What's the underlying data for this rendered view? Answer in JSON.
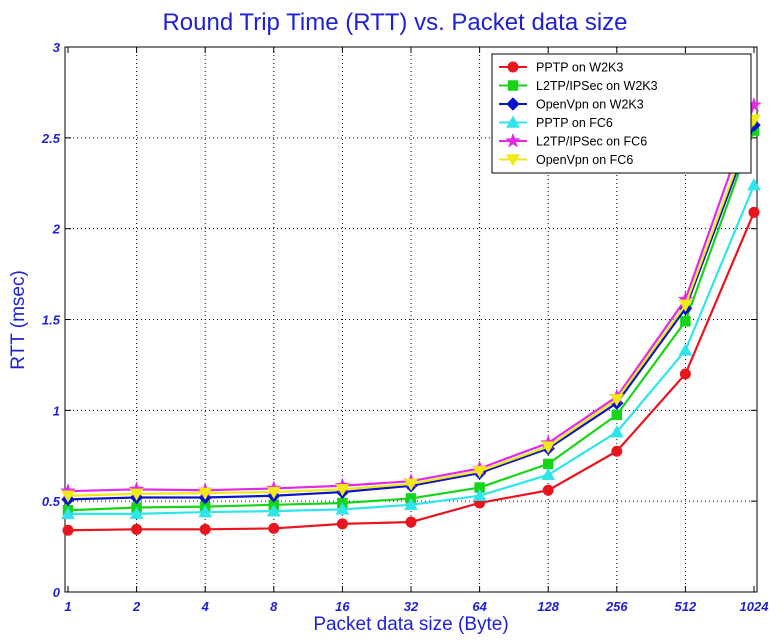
{
  "chart_data": {
    "type": "line",
    "title": "Round Trip Time (RTT) vs. Packet data size",
    "xlabel": "Packet data size (Byte)",
    "ylabel": "RTT (msec)",
    "categories": [
      "1",
      "2",
      "4",
      "8",
      "16",
      "32",
      "64",
      "128",
      "256",
      "512",
      "1024"
    ],
    "ylim": [
      0,
      3
    ],
    "yticks": [
      "0",
      "0.5",
      "1",
      "1.5",
      "2",
      "2.5",
      "3"
    ],
    "grid": true,
    "legend_position": "top-right",
    "series": [
      {
        "name": "PPTP on W2K3",
        "color": "#e8141e",
        "marker": "circle",
        "values": [
          0.34,
          0.345,
          0.345,
          0.35,
          0.375,
          0.385,
          0.49,
          0.56,
          0.775,
          1.2,
          2.09
        ]
      },
      {
        "name": "L2TP/IPSec on W2K3",
        "color": "#18d418",
        "marker": "square",
        "values": [
          0.45,
          0.465,
          0.47,
          0.48,
          0.49,
          0.515,
          0.575,
          0.705,
          0.975,
          1.49,
          2.54
        ]
      },
      {
        "name": "OpenVpn on W2K3",
        "color": "#0a14c8",
        "marker": "diamond",
        "values": [
          0.51,
          0.52,
          0.52,
          0.53,
          0.55,
          0.585,
          0.655,
          0.79,
          1.04,
          1.56,
          2.57
        ]
      },
      {
        "name": "PPTP on FC6",
        "color": "#2ee6ea",
        "marker": "triangle-up",
        "values": [
          0.43,
          0.43,
          0.44,
          0.445,
          0.455,
          0.48,
          0.53,
          0.645,
          0.88,
          1.33,
          2.24
        ]
      },
      {
        "name": "L2TP/IPSec on FC6",
        "color": "#e428e8",
        "marker": "star",
        "values": [
          0.555,
          0.565,
          0.56,
          0.57,
          0.585,
          0.61,
          0.68,
          0.82,
          1.075,
          1.61,
          2.68
        ]
      },
      {
        "name": "OpenVpn on FC6",
        "color": "#f0ea14",
        "marker": "triangle-down",
        "values": [
          0.53,
          0.54,
          0.545,
          0.55,
          0.565,
          0.595,
          0.665,
          0.8,
          1.06,
          1.58,
          2.6
        ]
      }
    ]
  }
}
